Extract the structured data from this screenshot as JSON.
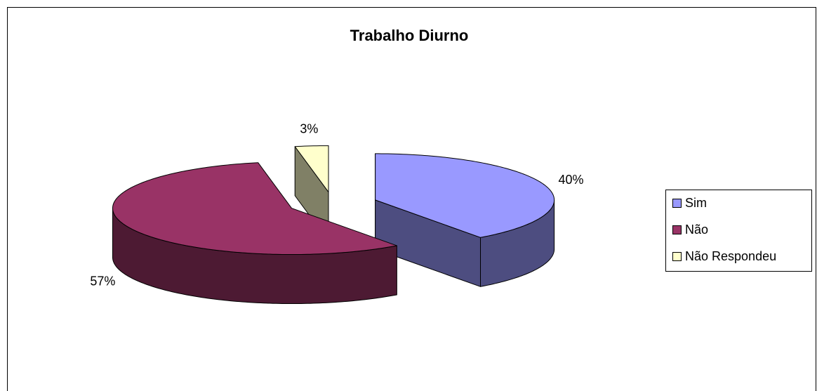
{
  "chart_data": {
    "type": "pie",
    "title": "Trabalho Diurno",
    "categories": [
      "Sim",
      "Não",
      "Não Respondeu"
    ],
    "values": [
      40,
      57,
      3
    ],
    "value_labels": [
      "40%",
      "57%",
      "3%"
    ],
    "colors": [
      "#9999ff",
      "#993366",
      "#ffffcc"
    ],
    "legend": "right"
  }
}
